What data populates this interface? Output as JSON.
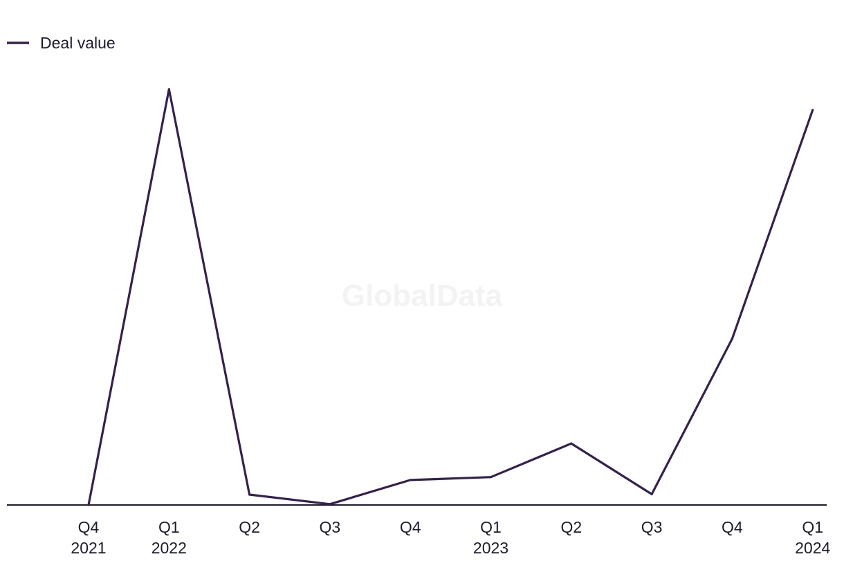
{
  "watermark": "GlobalData",
  "colors": {
    "series": "#35204f",
    "axis": "#1f1a2e",
    "text": "#1f1a2e",
    "watermark": "#f3f3f3"
  },
  "chart_data": {
    "type": "line",
    "title": "",
    "xlabel": "",
    "ylabel": "",
    "grid": false,
    "legend_position": "top-left",
    "y_axis_visible": false,
    "ylim": [
      0,
      100
    ],
    "categories": [
      {
        "quarter": "Q4",
        "year": "2021"
      },
      {
        "quarter": "Q1",
        "year": "2022"
      },
      {
        "quarter": "Q2",
        "year": ""
      },
      {
        "quarter": "Q3",
        "year": ""
      },
      {
        "quarter": "Q4",
        "year": ""
      },
      {
        "quarter": "Q1",
        "year": "2023"
      },
      {
        "quarter": "Q2",
        "year": ""
      },
      {
        "quarter": "Q3",
        "year": ""
      },
      {
        "quarter": "Q4",
        "year": ""
      },
      {
        "quarter": "Q1",
        "year": "2024"
      }
    ],
    "series": [
      {
        "name": "Deal value",
        "values": [
          0,
          100,
          2.5,
          0.2,
          6,
          6.7,
          14.8,
          2.6,
          40,
          95
        ]
      }
    ]
  }
}
